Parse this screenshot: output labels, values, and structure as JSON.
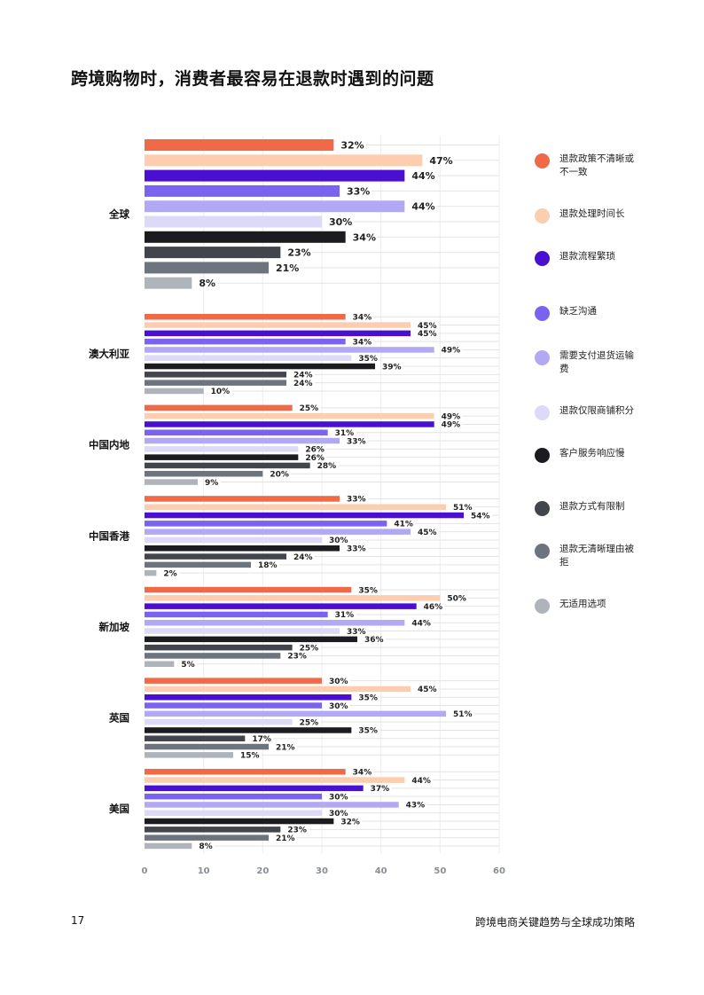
{
  "header": {
    "title": "跨境购物时，消费者最容易在退款时遇到的问题"
  },
  "footer": {
    "page_number": "17",
    "report_title": "跨境电商关键趋势与全球成功策略"
  },
  "colors": [
    "#f06a47",
    "#fccdae",
    "#4a0fd1",
    "#7b63f2",
    "#b2a9f5",
    "#dcdaf8",
    "#1b1b20",
    "#43454c",
    "#6e747e",
    "#afb4bb"
  ],
  "chart_data": {
    "type": "bar",
    "orientation": "horizontal",
    "xlim": [
      0,
      60
    ],
    "xticks": [
      "0",
      "10",
      "20",
      "30",
      "40",
      "50",
      "60"
    ],
    "value_suffix": "%",
    "grid": true,
    "legend_position": "right",
    "series": [
      {
        "name": "退款政策不清晰或不一致"
      },
      {
        "name": "退款处理时间长"
      },
      {
        "name": "退款流程繁琐"
      },
      {
        "name": "缺乏沟通"
      },
      {
        "name": "需要支付退货运输费"
      },
      {
        "name": "退款仅限商铺积分"
      },
      {
        "name": "客户服务响应慢"
      },
      {
        "name": "退款方式有限制"
      },
      {
        "name": "退款无清晰理由被拒"
      },
      {
        "name": "无适用选项"
      }
    ],
    "groups": [
      {
        "label": "全球",
        "values": [
          32,
          47,
          44,
          33,
          44,
          30,
          34,
          23,
          21,
          8
        ]
      },
      {
        "label": "澳大利亚",
        "values": [
          34,
          45,
          45,
          34,
          49,
          35,
          39,
          24,
          24,
          10
        ]
      },
      {
        "label": "中国内地",
        "values": [
          25,
          49,
          49,
          31,
          33,
          26,
          26,
          28,
          20,
          9
        ]
      },
      {
        "label": "中国香港",
        "values": [
          33,
          51,
          54,
          41,
          45,
          30,
          33,
          24,
          18,
          2
        ]
      },
      {
        "label": "新加坡",
        "values": [
          35,
          50,
          46,
          31,
          44,
          33,
          36,
          25,
          23,
          5
        ]
      },
      {
        "label": "英国",
        "values": [
          30,
          45,
          35,
          30,
          51,
          25,
          35,
          17,
          21,
          15
        ]
      },
      {
        "label": "美国",
        "values": [
          34,
          44,
          37,
          30,
          43,
          30,
          32,
          23,
          21,
          8
        ]
      }
    ]
  }
}
